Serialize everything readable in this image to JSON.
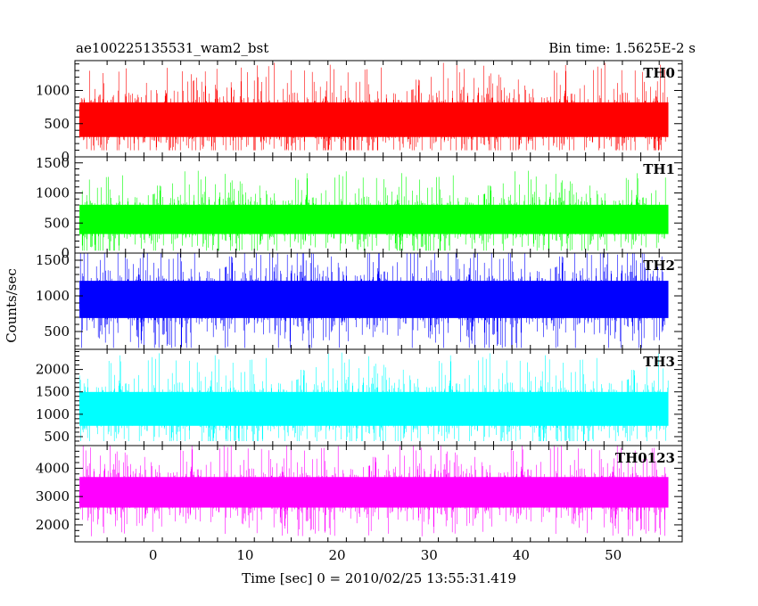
{
  "header": {
    "title": "ae100225135531_wam2_bst",
    "bin_time": "Bin time: 1.5625E-2 s"
  },
  "chart_data": {
    "type": "line",
    "xlabel": "Time [sec] 0 = 2010/02/25 13:55:31.419",
    "ylabel": "Counts/sec",
    "xlim": [
      -8.5,
      57.5
    ],
    "x_ticks": [
      0,
      10,
      20,
      30,
      40,
      50
    ],
    "x_data_range": [
      -8,
      56
    ],
    "bin_time_s": 0.015625,
    "series": [
      {
        "name": "TH0",
        "color": "#ff0000",
        "ylim": [
          0,
          1450
        ],
        "y_ticks": [
          0,
          500,
          1000
        ],
        "mean": 560,
        "min": 100,
        "max": 1450,
        "spread": 290
      },
      {
        "name": "TH1",
        "color": "#00ff00",
        "ylim": [
          0,
          1600
        ],
        "y_ticks": [
          0,
          500,
          1000,
          1500
        ],
        "mean": 560,
        "min": 40,
        "max": 1600,
        "spread": 270
      },
      {
        "name": "TH2",
        "color": "#0000ff",
        "ylim": [
          250,
          1600
        ],
        "y_ticks": [
          500,
          1000,
          1500
        ],
        "mean": 950,
        "min": 270,
        "max": 1600,
        "spread": 290
      },
      {
        "name": "TH3",
        "color": "#00ffff",
        "ylim": [
          300,
          2450
        ],
        "y_ticks": [
          500,
          1000,
          1500,
          2000
        ],
        "mean": 1120,
        "min": 400,
        "max": 2450,
        "spread": 420
      },
      {
        "name": "TH0123",
        "color": "#ff00ff",
        "ylim": [
          1400,
          4800
        ],
        "y_ticks": [
          2000,
          3000,
          4000
        ],
        "mean": 3150,
        "min": 1450,
        "max": 4800,
        "spread": 600
      }
    ]
  }
}
